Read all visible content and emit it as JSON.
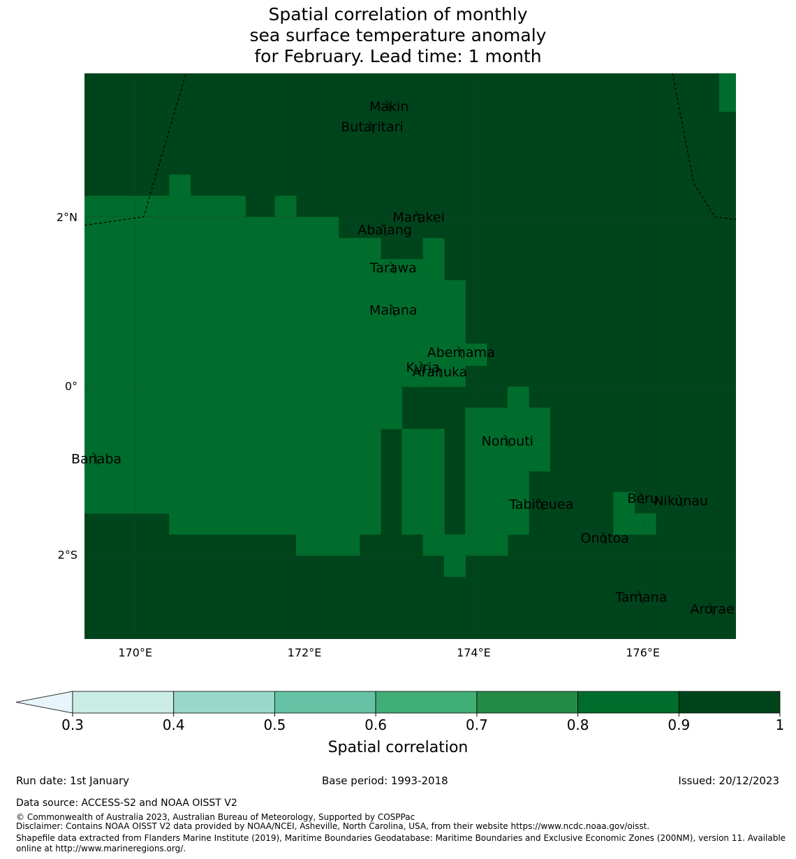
{
  "title": {
    "line1": "Spatial correlation of monthly",
    "line2": "sea surface temperature anomaly",
    "line3": "for February. Lead time: 1 month"
  },
  "map": {
    "extent": {
      "lon_min": 169.4,
      "lon_max": 177.1,
      "lat_min": -3.0,
      "lat_max": 3.7
    },
    "lat_ticks": [
      {
        "value": 2,
        "label": "2°N"
      },
      {
        "value": 0,
        "label": "0°"
      },
      {
        "value": -2,
        "label": "2°S"
      }
    ],
    "lon_ticks": [
      {
        "value": 170,
        "label": "170°E"
      },
      {
        "value": 172,
        "label": "172°E"
      },
      {
        "value": 174,
        "label": "174°E"
      },
      {
        "value": 176,
        "label": "176°E"
      }
    ],
    "islands": [
      {
        "name": "Makin",
        "lon": 173.0,
        "lat": 3.31
      },
      {
        "name": "Butaritari",
        "lon": 172.8,
        "lat": 3.07
      },
      {
        "name": "Marakei",
        "lon": 173.35,
        "lat": 2.0
      },
      {
        "name": "Abaiang",
        "lon": 172.95,
        "lat": 1.85
      },
      {
        "name": "Tarawa",
        "lon": 173.05,
        "lat": 1.4
      },
      {
        "name": "Maiana",
        "lon": 173.05,
        "lat": 0.9
      },
      {
        "name": "Abemama",
        "lon": 173.85,
        "lat": 0.4
      },
      {
        "name": "Kuria",
        "lon": 173.4,
        "lat": 0.22
      },
      {
        "name": "Aranuka",
        "lon": 173.6,
        "lat": 0.17
      },
      {
        "name": "Nonouti",
        "lon": 174.4,
        "lat": -0.65
      },
      {
        "name": "Banaba",
        "lon": 169.54,
        "lat": -0.86
      },
      {
        "name": "Tabiteuea",
        "lon": 174.8,
        "lat": -1.4
      },
      {
        "name": "Beru",
        "lon": 176.0,
        "lat": -1.33
      },
      {
        "name": "Nikunau",
        "lon": 176.45,
        "lat": -1.36
      },
      {
        "name": "Onotoa",
        "lon": 175.55,
        "lat": -1.8
      },
      {
        "name": "Tamana",
        "lon": 175.98,
        "lat": -2.5
      },
      {
        "name": "Arorae",
        "lon": 176.82,
        "lat": -2.64
      }
    ],
    "eez_boundaries": [
      [
        [
          169.4,
          1.9
        ],
        [
          170.1,
          2.0
        ],
        [
          170.6,
          3.7
        ]
      ],
      [
        [
          176.35,
          3.7
        ],
        [
          176.6,
          2.4
        ],
        [
          176.85,
          2.0
        ],
        [
          177.1,
          1.97
        ]
      ]
    ],
    "grid_cells": {
      "resolution_deg": 0.25,
      "background_bin": 6,
      "patches": [
        {
          "bin": 5,
          "lon": [
            169.4,
            170.4
          ],
          "lat": [
            -1.51,
            2.25
          ]
        },
        {
          "bin": 5,
          "lon": [
            170.4,
            170.65
          ],
          "lat": [
            -1.76,
            2.5
          ]
        },
        {
          "bin": 5,
          "lon": [
            170.65,
            171.3
          ],
          "lat": [
            -1.76,
            2.25
          ]
        },
        {
          "bin": 5,
          "lon": [
            171.3,
            171.65
          ],
          "lat": [
            -1.76,
            2.0
          ]
        },
        {
          "bin": 5,
          "lon": [
            171.65,
            171.9
          ],
          "lat": [
            -1.76,
            2.25
          ]
        },
        {
          "bin": 5,
          "lon": [
            171.9,
            172.4
          ],
          "lat": [
            -2.01,
            2.0
          ]
        },
        {
          "bin": 5,
          "lon": [
            172.4,
            172.65
          ],
          "lat": [
            -2.01,
            1.75
          ]
        },
        {
          "bin": 5,
          "lon": [
            172.65,
            172.9
          ],
          "lat": [
            -1.76,
            1.75
          ]
        },
        {
          "bin": 5,
          "lon": [
            172.9,
            173.15
          ],
          "lat": [
            -0.51,
            1.5
          ]
        },
        {
          "bin": 5,
          "lon": [
            173.15,
            173.4
          ],
          "lat": [
            -0.01,
            1.5
          ]
        },
        {
          "bin": 5,
          "lon": [
            173.4,
            173.65
          ],
          "lat": [
            -0.01,
            1.75
          ]
        },
        {
          "bin": 5,
          "lon": [
            173.65,
            173.9
          ],
          "lat": [
            -0.01,
            1.25
          ]
        },
        {
          "bin": 5,
          "lon": [
            173.15,
            173.65
          ],
          "lat": [
            -1.76,
            -0.51
          ]
        },
        {
          "bin": 5,
          "lon": [
            173.4,
            173.9
          ],
          "lat": [
            -2.01,
            -1.76
          ]
        },
        {
          "bin": 5,
          "lon": [
            173.65,
            173.9
          ],
          "lat": [
            -2.26,
            -2.01
          ]
        },
        {
          "bin": 5,
          "lon": [
            173.9,
            174.15
          ],
          "lat": [
            0.24,
            0.5
          ]
        },
        {
          "bin": 5,
          "lon": [
            173.9,
            174.4
          ],
          "lat": [
            -2.01,
            -0.26
          ]
        },
        {
          "bin": 5,
          "lon": [
            174.4,
            174.65
          ],
          "lat": [
            -1.76,
            -0.01
          ]
        },
        {
          "bin": 5,
          "lon": [
            174.65,
            174.9
          ],
          "lat": [
            -1.01,
            -0.26
          ]
        },
        {
          "bin": 5,
          "lon": [
            175.65,
            175.9
          ],
          "lat": [
            -1.76,
            -1.26
          ]
        },
        {
          "bin": 5,
          "lon": [
            175.9,
            176.15
          ],
          "lat": [
            -1.76,
            -1.51
          ]
        },
        {
          "bin": 5,
          "lon": [
            176.9,
            177.1
          ],
          "lat": [
            3.25,
            3.7
          ]
        }
      ]
    }
  },
  "colorbar": {
    "label": "Spatial correlation",
    "under_color": "#e5f5f9",
    "bins": [
      {
        "from": 0.3,
        "to": 0.4,
        "color": "#ccece6"
      },
      {
        "from": 0.4,
        "to": 0.5,
        "color": "#99d8c9"
      },
      {
        "from": 0.5,
        "to": 0.6,
        "color": "#66c2a4"
      },
      {
        "from": 0.6,
        "to": 0.7,
        "color": "#41ae76"
      },
      {
        "from": 0.7,
        "to": 0.8,
        "color": "#238b45"
      },
      {
        "from": 0.8,
        "to": 0.9,
        "color": "#006d2c"
      },
      {
        "from": 0.9,
        "to": 1.0,
        "color": "#00441b"
      }
    ],
    "tick_labels": [
      "0.3",
      "0.4",
      "0.5",
      "0.6",
      "0.7",
      "0.8",
      "0.9",
      "1"
    ]
  },
  "footer": {
    "run_date": "Run date: 1st January",
    "base_period": "Base period: 1993-2018",
    "issued": "Issued: 20/12/2023",
    "data_source": "Data source: ACCESS-S2 and NOAA OISST V2",
    "copyright": "© Commonwealth of Australia 2023, Australian Bureau of Meteorology, Supported by COSPPac",
    "disclaimer": "Disclaimer: Contains NOAA OISST V2 data provided by NOAA/NCEI, Asheville, North Carolina, USA, from their website https://www.ncdc.noaa.gov/oisst.",
    "shapefile_line1": "Shapefile data extracted from Flanders Marine Institute (2019), Maritime Boundaries Geodatabase: Maritime Boundaries and Exclusive Economic Zones (200NM), version 11. Available",
    "shapefile_line2": "online at http://www.marineregions.org/."
  }
}
